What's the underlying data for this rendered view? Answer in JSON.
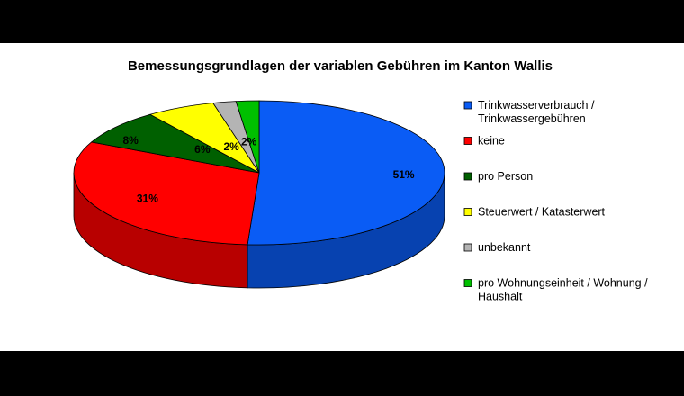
{
  "chart_data": {
    "type": "pie",
    "title": "Bemessungsgrundlagen der variablen Gebühren im Kanton Wallis",
    "legend_position": "right",
    "style": "3d",
    "slices": [
      {
        "label": [
          "Trinkwasserverbrauch /",
          "Trinkwassergebühren"
        ],
        "value": 51,
        "value_label": "51%",
        "color": "#0A5CF5"
      },
      {
        "label": [
          "keine"
        ],
        "value": 31,
        "value_label": "31%",
        "color": "#FF0000"
      },
      {
        "label": [
          "pro Person"
        ],
        "value": 8,
        "value_label": "8%",
        "color": "#006000"
      },
      {
        "label": [
          "Steuerwert / Katasterwert"
        ],
        "value": 6,
        "value_label": "6%",
        "color": "#FFFF00"
      },
      {
        "label": [
          "unbekannt"
        ],
        "value": 2,
        "value_label": "2%",
        "color": "#B4B4B4"
      },
      {
        "label": [
          "pro Wohnungseinheit / Wohnung /",
          "Haushalt"
        ],
        "value": 2,
        "value_label": "2%",
        "color": "#00C000"
      }
    ]
  }
}
